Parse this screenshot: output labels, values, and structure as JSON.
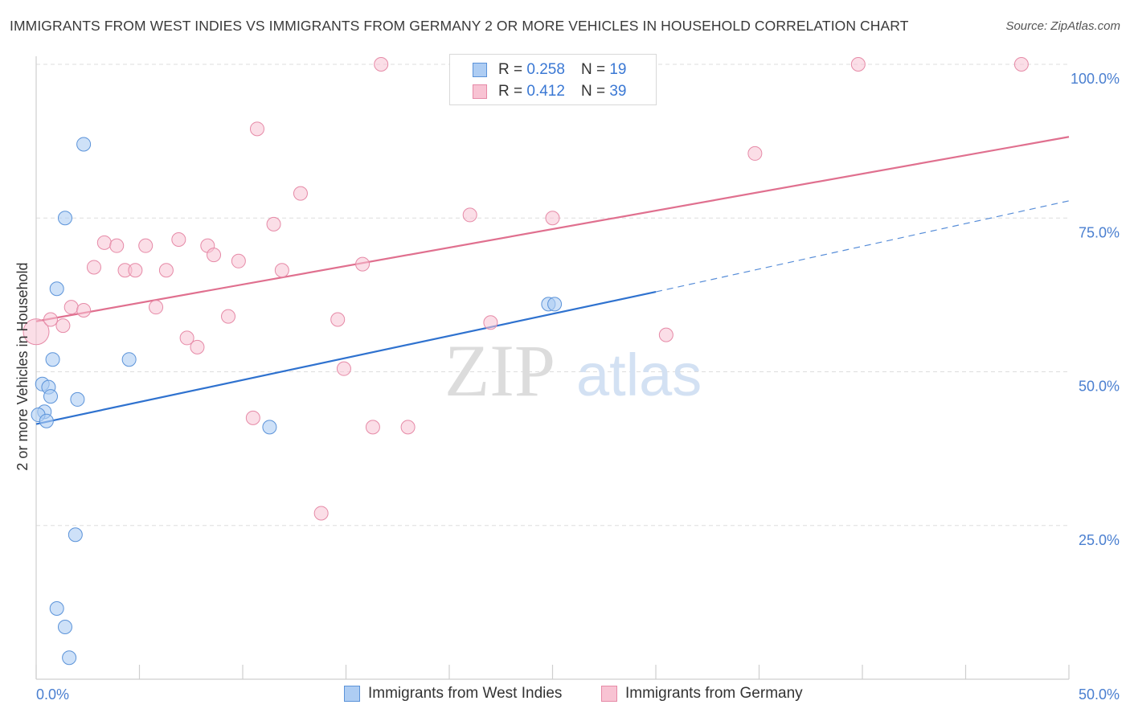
{
  "title": "IMMIGRANTS FROM WEST INDIES VS IMMIGRANTS FROM GERMANY 2 OR MORE VEHICLES IN HOUSEHOLD CORRELATION CHART",
  "source": "Source: ZipAtlas.com",
  "watermark": {
    "zip": "ZIP",
    "atlas": "atlas"
  },
  "legend": {
    "rows": [
      {
        "r_label": "R =",
        "r_value": "0.258",
        "n_label": "N =",
        "n_value": "19"
      },
      {
        "r_label": "R =",
        "r_value": "0.412",
        "n_label": "N =",
        "n_value": "39"
      }
    ]
  },
  "colors": {
    "west_indies_fill": "#aecdf3",
    "west_indies_stroke": "#5b93d9",
    "west_indies_line": "#2f72cf",
    "germany_fill": "#f8c3d3",
    "germany_stroke": "#e68aa7",
    "germany_line": "#e0708f",
    "tick_text": "#4a7fd0"
  },
  "chart_data": {
    "type": "scatter",
    "title": "IMMIGRANTS FROM WEST INDIES VS IMMIGRANTS FROM GERMANY 2 OR MORE VEHICLES IN HOUSEHOLD CORRELATION CHART",
    "xlabel": "",
    "ylabel": "2 or more Vehicles in Household",
    "xlim": [
      0,
      50
    ],
    "ylim": [
      0,
      102
    ],
    "x_tick_labels": [
      "0.0%",
      "50.0%"
    ],
    "y_ticks": [
      25,
      50,
      75,
      100
    ],
    "y_tick_labels": [
      "25.0%",
      "50.0%",
      "75.0%",
      "100.0%"
    ],
    "grid": true,
    "legend_position": "top-center",
    "series": [
      {
        "name": "Immigrants from West Indies",
        "points": [
          [
            2.3,
            87.0
          ],
          [
            1.4,
            75.0
          ],
          [
            1.0,
            63.5
          ],
          [
            0.8,
            52.0
          ],
          [
            4.5,
            52.0
          ],
          [
            0.3,
            48.0
          ],
          [
            0.6,
            47.5
          ],
          [
            0.7,
            46.0
          ],
          [
            2.0,
            45.5
          ],
          [
            0.4,
            43.5
          ],
          [
            0.1,
            43.0
          ],
          [
            0.5,
            42.0
          ],
          [
            11.3,
            41.0
          ],
          [
            24.8,
            61.0
          ],
          [
            25.1,
            61.0
          ],
          [
            1.9,
            23.5
          ],
          [
            1.0,
            11.5
          ],
          [
            1.4,
            8.5
          ],
          [
            1.6,
            3.5
          ]
        ],
        "trend": {
          "x": [
            0,
            30
          ],
          "y": [
            41.5,
            63.0
          ]
        },
        "trend_dashed": {
          "x": [
            30,
            50
          ],
          "y": [
            63.0,
            77.8
          ]
        }
      },
      {
        "name": "Immigrants from Germany",
        "points": [
          [
            0.0,
            56.5
          ],
          [
            0.7,
            58.5
          ],
          [
            1.3,
            57.5
          ],
          [
            1.7,
            60.5
          ],
          [
            2.3,
            60.0
          ],
          [
            2.8,
            67.0
          ],
          [
            3.3,
            71.0
          ],
          [
            3.9,
            70.5
          ],
          [
            4.3,
            66.5
          ],
          [
            4.8,
            66.5
          ],
          [
            5.3,
            70.5
          ],
          [
            5.8,
            60.5
          ],
          [
            6.3,
            66.5
          ],
          [
            6.9,
            71.5
          ],
          [
            7.3,
            55.5
          ],
          [
            7.8,
            54.0
          ],
          [
            8.3,
            70.5
          ],
          [
            8.6,
            69.0
          ],
          [
            9.3,
            59.0
          ],
          [
            9.8,
            68.0
          ],
          [
            10.5,
            42.5
          ],
          [
            10.7,
            89.5
          ],
          [
            11.5,
            74.0
          ],
          [
            11.9,
            66.5
          ],
          [
            12.8,
            79.0
          ],
          [
            13.8,
            27.0
          ],
          [
            14.6,
            58.5
          ],
          [
            14.9,
            50.5
          ],
          [
            15.8,
            67.5
          ],
          [
            16.3,
            41.0
          ],
          [
            16.7,
            100.0
          ],
          [
            18.0,
            41.0
          ],
          [
            21.0,
            75.5
          ],
          [
            22.0,
            58.0
          ],
          [
            25.0,
            75.0
          ],
          [
            30.5,
            56.0
          ],
          [
            34.8,
            85.5
          ],
          [
            39.8,
            100.0
          ],
          [
            47.7,
            100.0
          ]
        ],
        "trend": {
          "x": [
            0,
            50
          ],
          "y": [
            58.2,
            88.2
          ]
        }
      }
    ]
  },
  "bottom_legend": [
    {
      "label": "Immigrants from West Indies"
    },
    {
      "label": "Immigrants from Germany"
    }
  ]
}
